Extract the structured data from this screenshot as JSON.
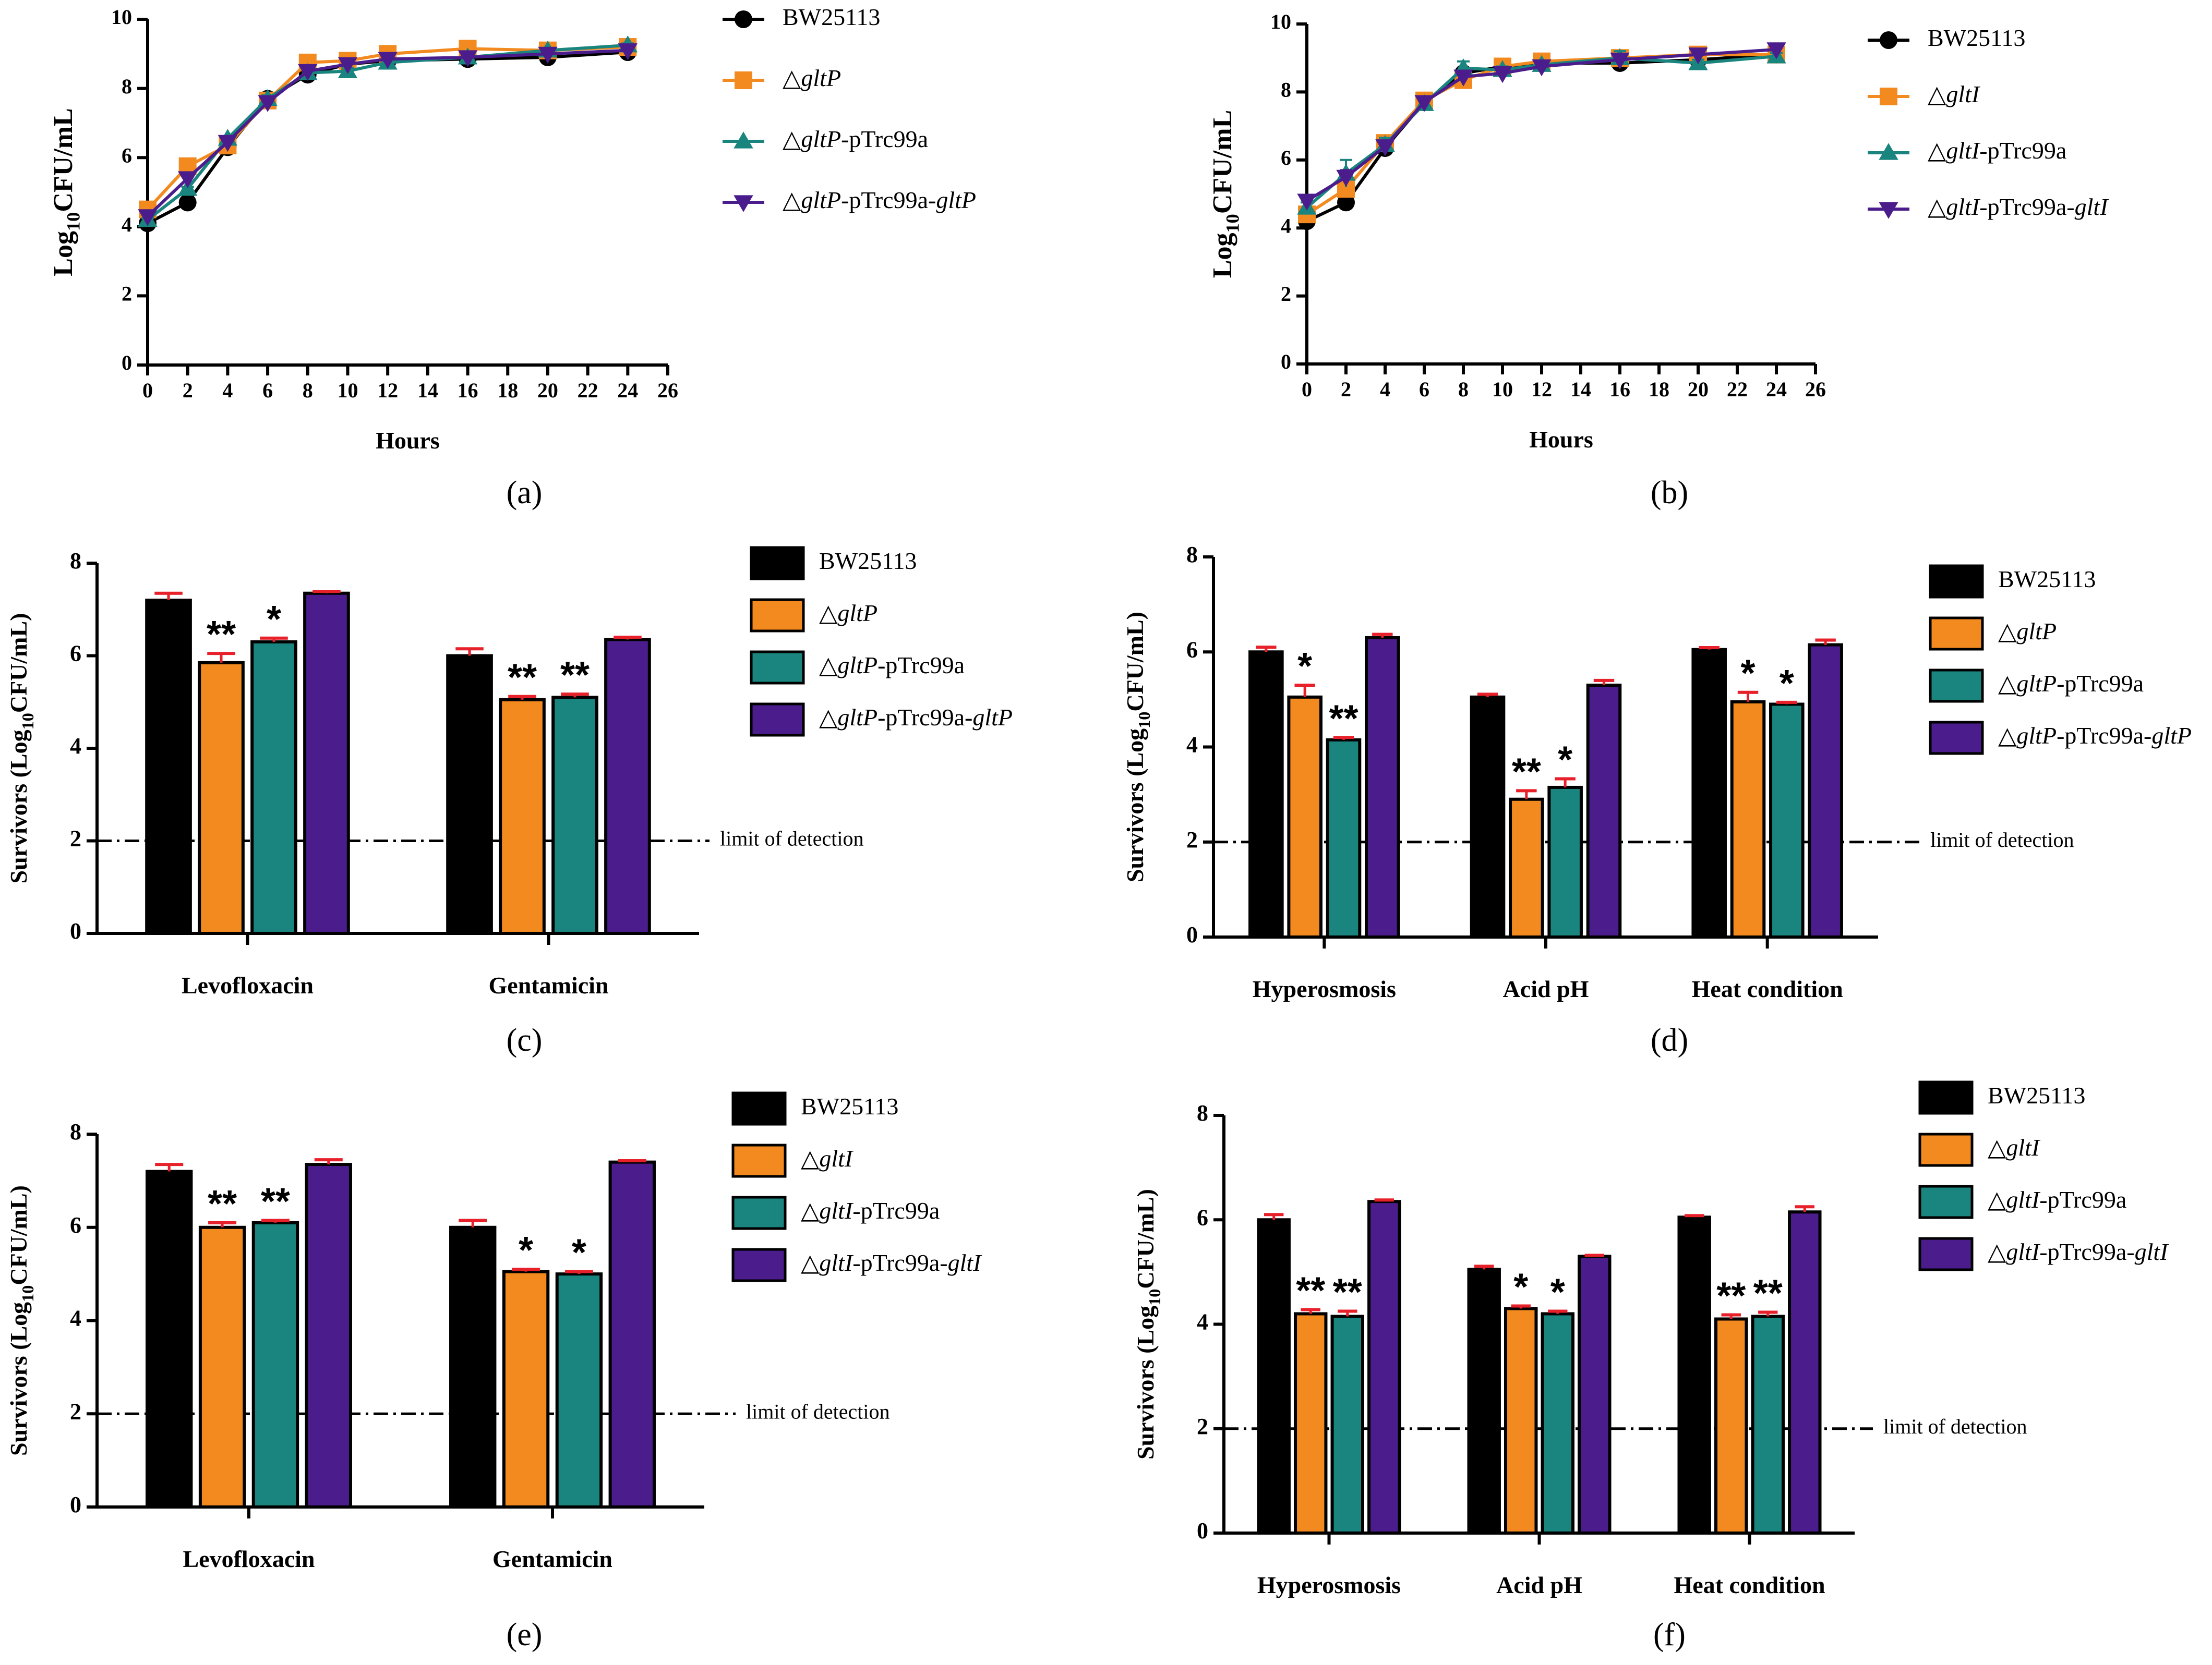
{
  "colors": {
    "wt": "#000000",
    "mutant": "#f28a1f",
    "empty_vector": "#1a847e",
    "complemented": "#4b1d8c",
    "error_bar": "#e8202a",
    "axis": "#000000"
  },
  "chart_data": [
    {
      "id": "a",
      "type": "line",
      "panel_label": "(a)",
      "xlabel": "Hours",
      "ylabel_main": "Log",
      "ylabel_sub": "10",
      "ylabel_tail": "CFU/mL",
      "xlim": [
        0,
        26
      ],
      "xticks": [
        "0",
        "2",
        "4",
        "6",
        "8",
        "10",
        "12",
        "14",
        "16",
        "18",
        "20",
        "22",
        "24",
        "26"
      ],
      "ylim": [
        0,
        10
      ],
      "yticks": [
        "0",
        "2",
        "4",
        "6",
        "8",
        "10"
      ],
      "x": [
        0,
        2,
        4,
        6,
        8,
        10,
        12,
        16,
        20,
        24
      ],
      "series": [
        {
          "name": "BW25113",
          "legend": {
            "pre": "BW25113",
            "gene": "",
            "mid": "",
            "gene2": ""
          },
          "marker": "circle",
          "values": [
            4.1,
            4.7,
            6.3,
            7.7,
            8.4,
            8.7,
            8.8,
            8.85,
            8.9,
            9.05
          ],
          "err": [
            0.05,
            0.05,
            0.05,
            0.1,
            0.1,
            0.05,
            0.05,
            0.05,
            0.05,
            0.05
          ]
        },
        {
          "name": "△gltP",
          "legend": {
            "pre": "△",
            "gene": "gltP",
            "mid": "",
            "gene2": ""
          },
          "marker": "square",
          "values": [
            4.5,
            5.75,
            6.35,
            7.65,
            8.75,
            8.8,
            9.0,
            9.15,
            9.1,
            9.2
          ],
          "err": [
            0.05,
            0.05,
            0.05,
            0.1,
            0.15,
            0.1,
            0.05,
            0.05,
            0.05,
            0.05
          ]
        },
        {
          "name": "△gltP-pTrc99a",
          "legend": {
            "pre": "△",
            "gene": "gltP",
            "mid": "-pTrc99a",
            "gene2": ""
          },
          "marker": "triangle-up",
          "values": [
            4.2,
            5.1,
            6.55,
            7.7,
            8.45,
            8.5,
            8.75,
            8.9,
            9.1,
            9.25
          ],
          "err": [
            0.05,
            0.05,
            0.05,
            0.1,
            0.1,
            0.1,
            0.05,
            0.05,
            0.05,
            0.05
          ]
        },
        {
          "name": "△gltP-pTrc99a-gltP",
          "legend": {
            "pre": "△",
            "gene": "gltP",
            "mid": "-pTrc99a-",
            "gene2": "gltP"
          },
          "marker": "triangle-down",
          "values": [
            4.3,
            5.4,
            6.45,
            7.6,
            8.5,
            8.7,
            8.85,
            8.9,
            9.0,
            9.1
          ],
          "err": [
            0.05,
            0.05,
            0.05,
            0.1,
            0.1,
            0.05,
            0.05,
            0.05,
            0.05,
            0.05
          ]
        }
      ]
    },
    {
      "id": "b",
      "type": "line",
      "panel_label": "(b)",
      "xlabel": "Hours",
      "ylabel_main": "Log",
      "ylabel_sub": "10",
      "ylabel_tail": "CFU/mL",
      "xlim": [
        0,
        26
      ],
      "xticks": [
        "0",
        "2",
        "4",
        "6",
        "8",
        "10",
        "12",
        "14",
        "16",
        "18",
        "20",
        "22",
        "24",
        "26"
      ],
      "ylim": [
        0,
        10
      ],
      "yticks": [
        "0",
        "2",
        "4",
        "6",
        "8",
        "10"
      ],
      "x": [
        0,
        2,
        4,
        6,
        8,
        10,
        12,
        16,
        20,
        24
      ],
      "series": [
        {
          "name": "BW25113",
          "legend": {
            "pre": "BW25113",
            "gene": "",
            "mid": "",
            "gene2": ""
          },
          "marker": "circle",
          "values": [
            4.2,
            4.75,
            6.35,
            7.7,
            8.55,
            8.75,
            8.85,
            8.85,
            8.95,
            9.1
          ],
          "err": [
            0.2,
            0.1,
            0.1,
            0.1,
            0.15,
            0.1,
            0.1,
            0.1,
            0.05,
            0.05
          ]
        },
        {
          "name": "△gltI",
          "legend": {
            "pre": "△",
            "gene": "gltI",
            "mid": "",
            "gene2": ""
          },
          "marker": "square",
          "values": [
            4.4,
            5.15,
            6.5,
            7.75,
            8.35,
            8.75,
            8.9,
            9.0,
            9.1,
            9.1
          ],
          "err": [
            0.1,
            0.15,
            0.1,
            0.1,
            0.15,
            0.1,
            0.1,
            0.1,
            0.05,
            0.05
          ]
        },
        {
          "name": "△gltI-pTrc99a",
          "legend": {
            "pre": "△",
            "gene": "gltI",
            "mid": "-pTrc99a",
            "gene2": ""
          },
          "marker": "triangle-up",
          "values": [
            4.6,
            5.6,
            6.45,
            7.65,
            8.7,
            8.65,
            8.8,
            9.0,
            8.85,
            9.05
          ],
          "err": [
            0.15,
            0.4,
            0.2,
            0.1,
            0.2,
            0.1,
            0.1,
            0.2,
            0.1,
            0.1
          ]
        },
        {
          "name": "△gltI-pTrc99a-gltI",
          "legend": {
            "pre": "△",
            "gene": "gltI",
            "mid": "-pTrc99a-",
            "gene2": "gltI"
          },
          "marker": "triangle-down",
          "values": [
            4.8,
            5.5,
            6.4,
            7.7,
            8.45,
            8.55,
            8.75,
            8.95,
            9.1,
            9.25
          ],
          "err": [
            0.1,
            0.2,
            0.1,
            0.1,
            0.15,
            0.1,
            0.1,
            0.1,
            0.05,
            0.05
          ]
        }
      ]
    },
    {
      "id": "c",
      "type": "bar",
      "panel_label": "(c)",
      "ylabel_main": "Survivors (Log",
      "ylabel_sub": "10",
      "ylabel_tail": "CFU/mL)",
      "ylim": [
        0,
        8
      ],
      "yticks": [
        "0",
        "2",
        "4",
        "6",
        "8"
      ],
      "categories": [
        "Levofloxacin",
        "Gentamicin"
      ],
      "lod": 2,
      "lod_label": "limit of detection",
      "series": [
        {
          "name": "BW25113",
          "legend": {
            "pre": "BW25113",
            "gene": "",
            "mid": "",
            "gene2": ""
          },
          "values": [
            7.2,
            6.0
          ],
          "err": [
            0.15,
            0.15
          ],
          "sig": [
            "",
            ""
          ]
        },
        {
          "name": "△gltP",
          "legend": {
            "pre": "△",
            "gene": "gltP",
            "mid": "",
            "gene2": ""
          },
          "values": [
            5.85,
            5.05
          ],
          "err": [
            0.2,
            0.07
          ],
          "sig": [
            "**",
            "**"
          ]
        },
        {
          "name": "△gltP-pTrc99a",
          "legend": {
            "pre": "△",
            "gene": "gltP",
            "mid": "-pTrc99a",
            "gene2": ""
          },
          "values": [
            6.3,
            5.1
          ],
          "err": [
            0.08,
            0.07
          ],
          "sig": [
            "*",
            "**"
          ]
        },
        {
          "name": "△gltP-pTrc99a-gltP",
          "legend": {
            "pre": "△",
            "gene": "gltP",
            "mid": "-pTrc99a-",
            "gene2": "gltP"
          },
          "values": [
            7.35,
            6.35
          ],
          "err": [
            0.04,
            0.05
          ],
          "sig": [
            "",
            ""
          ]
        }
      ]
    },
    {
      "id": "d",
      "type": "bar",
      "panel_label": "(d)",
      "ylabel_main": "Survivors (Log",
      "ylabel_sub": "10",
      "ylabel_tail": "CFU/mL)",
      "ylim": [
        0,
        8
      ],
      "yticks": [
        "0",
        "2",
        "4",
        "6",
        "8"
      ],
      "categories": [
        "Hyperosmosis",
        "Acid pH",
        "Heat condition"
      ],
      "lod": 2,
      "lod_label": "limit of detection",
      "series": [
        {
          "name": "BW25113",
          "legend": {
            "pre": "BW25113",
            "gene": "",
            "mid": "",
            "gene2": ""
          },
          "values": [
            6.0,
            5.05,
            6.05
          ],
          "err": [
            0.1,
            0.06,
            0.04
          ],
          "sig": [
            "",
            "",
            ""
          ]
        },
        {
          "name": "△gltP",
          "legend": {
            "pre": "△",
            "gene": "gltP",
            "mid": "",
            "gene2": ""
          },
          "values": [
            5.05,
            2.9,
            4.95
          ],
          "err": [
            0.25,
            0.18,
            0.2
          ],
          "sig": [
            "*",
            "**",
            "*"
          ]
        },
        {
          "name": "△gltP-pTrc99a",
          "legend": {
            "pre": "△",
            "gene": "gltP",
            "mid": "-pTrc99a",
            "gene2": ""
          },
          "values": [
            4.15,
            3.15,
            4.9
          ],
          "err": [
            0.05,
            0.18,
            0.04
          ],
          "sig": [
            "**",
            "*",
            "*"
          ]
        },
        {
          "name": "△gltP-pTrc99a-gltP",
          "legend": {
            "pre": "△",
            "gene": "gltP",
            "mid": "-pTrc99a-",
            "gene2": "gltP"
          },
          "values": [
            6.3,
            5.3,
            6.15
          ],
          "err": [
            0.07,
            0.1,
            0.1
          ],
          "sig": [
            "",
            "",
            ""
          ]
        }
      ]
    },
    {
      "id": "e",
      "type": "bar",
      "panel_label": "(e)",
      "ylabel_main": "Survivors (Log",
      "ylabel_sub": "10",
      "ylabel_tail": "CFU/mL)",
      "ylim": [
        0,
        8
      ],
      "yticks": [
        "0",
        "2",
        "4",
        "6",
        "8"
      ],
      "categories": [
        "Levofloxacin",
        "Gentamicin"
      ],
      "lod": 2,
      "lod_label": "limit of detection",
      "series": [
        {
          "name": "BW25113",
          "legend": {
            "pre": "BW25113",
            "gene": "",
            "mid": "",
            "gene2": ""
          },
          "values": [
            7.2,
            6.0
          ],
          "err": [
            0.15,
            0.15
          ],
          "sig": [
            "",
            ""
          ]
        },
        {
          "name": "△gltI",
          "legend": {
            "pre": "△",
            "gene": "gltI",
            "mid": "",
            "gene2": ""
          },
          "values": [
            6.0,
            5.05
          ],
          "err": [
            0.1,
            0.05
          ],
          "sig": [
            "**",
            "*"
          ]
        },
        {
          "name": "△gltI-pTrc99a",
          "legend": {
            "pre": "△",
            "gene": "gltI",
            "mid": "-pTrc99a",
            "gene2": ""
          },
          "values": [
            6.1,
            5.0
          ],
          "err": [
            0.05,
            0.05
          ],
          "sig": [
            "**",
            "*"
          ]
        },
        {
          "name": "△gltI-pTrc99a-gltI",
          "legend": {
            "pre": "△",
            "gene": "gltI",
            "mid": "-pTrc99a-",
            "gene2": "gltI"
          },
          "values": [
            7.35,
            7.4
          ],
          "err": [
            0.1,
            0.03
          ],
          "sig": [
            "",
            ""
          ]
        }
      ]
    },
    {
      "id": "f",
      "type": "bar",
      "panel_label": "(f)",
      "ylabel_main": "Survivors (Log",
      "ylabel_sub": "10",
      "ylabel_tail": "CFU/mL)",
      "ylim": [
        0,
        8
      ],
      "yticks": [
        "0",
        "2",
        "4",
        "6",
        "8"
      ],
      "categories": [
        "Hyperosmosis",
        "Acid pH",
        "Heat condition"
      ],
      "lod": 2,
      "lod_label": "limit of detection",
      "series": [
        {
          "name": "BW25113",
          "legend": {
            "pre": "BW25113",
            "gene": "",
            "mid": "",
            "gene2": ""
          },
          "values": [
            6.0,
            5.05,
            6.05
          ],
          "err": [
            0.1,
            0.06,
            0.03
          ],
          "sig": [
            "",
            "",
            ""
          ]
        },
        {
          "name": "△gltI",
          "legend": {
            "pre": "△",
            "gene": "gltI",
            "mid": "",
            "gene2": ""
          },
          "values": [
            4.2,
            4.3,
            4.1
          ],
          "err": [
            0.08,
            0.05,
            0.08
          ],
          "sig": [
            "**",
            "*",
            "**"
          ]
        },
        {
          "name": "△gltI-pTrc99a",
          "legend": {
            "pre": "△",
            "gene": "gltI",
            "mid": "-pTrc99a",
            "gene2": ""
          },
          "values": [
            4.15,
            4.2,
            4.15
          ],
          "err": [
            0.1,
            0.05,
            0.08
          ],
          "sig": [
            "**",
            "*",
            "**"
          ]
        },
        {
          "name": "△gltI-pTrc99a-gltI",
          "legend": {
            "pre": "△",
            "gene": "gltI",
            "mid": "-pTrc99a-",
            "gene2": "gltI"
          },
          "values": [
            6.35,
            5.3,
            6.15
          ],
          "err": [
            0.03,
            0.02,
            0.1
          ],
          "sig": [
            "",
            "",
            ""
          ]
        }
      ]
    }
  ]
}
